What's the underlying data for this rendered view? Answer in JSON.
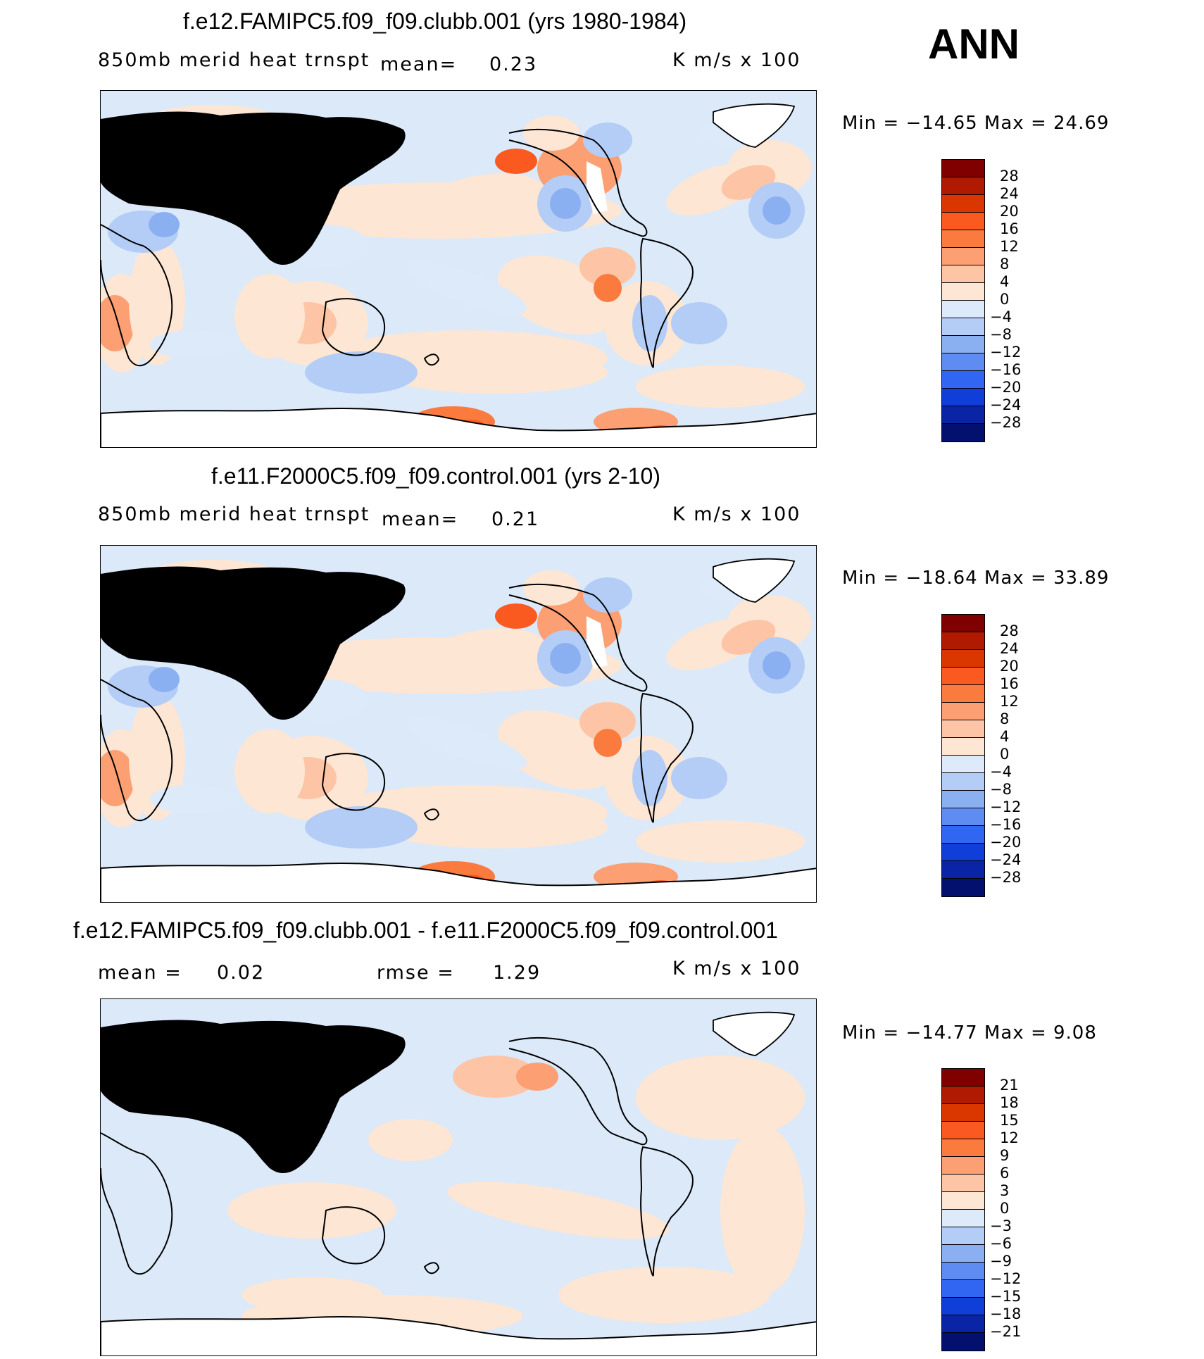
{
  "season": "ANN",
  "units": "K m/s x 100",
  "panels": [
    {
      "id": "model",
      "title": "f.e12.FAMIPC5.f09_f09.clubb.001 (yrs 1980-1984)",
      "variable": "850mb merid heat trnspt",
      "mean_label": "mean=",
      "mean_value": "0.23",
      "min_max": "Min = −14.65 Max =   24.69",
      "colorbar_ticks": [
        "28",
        "24",
        "20",
        "16",
        "12",
        "8",
        "4",
        "0",
        "−4",
        "−8",
        "−12",
        "−16",
        "−20",
        "−24",
        "−28"
      ]
    },
    {
      "id": "control",
      "title": "f.e11.F2000C5.f09_f09.control.001 (yrs 2-10)",
      "variable": "850mb merid heat trnspt",
      "mean_label": "mean=",
      "mean_value": "0.21",
      "min_max": "Min = −18.64 Max =   33.89",
      "colorbar_ticks": [
        "28",
        "24",
        "20",
        "16",
        "12",
        "8",
        "4",
        "0",
        "−4",
        "−8",
        "−12",
        "−16",
        "−20",
        "−24",
        "−28"
      ]
    },
    {
      "id": "difference",
      "title": "f.e12.FAMIPC5.f09_f09.clubb.001 - f.e11.F2000C5.f09_f09.control.001",
      "mean_label": "mean =",
      "mean_value": "0.02",
      "rmse_label": "rmse =",
      "rmse_value": "1.29",
      "min_max": "Min = −14.77 Max =    9.08",
      "colorbar_ticks": [
        "21",
        "18",
        "15",
        "12",
        "9",
        "6",
        "3",
        "0",
        "−3",
        "−6",
        "−9",
        "−12",
        "−15",
        "−18",
        "−21"
      ]
    }
  ],
  "colors": {
    "colorbar": [
      "#800000",
      "#b01a00",
      "#d93600",
      "#fa5a1f",
      "#fb7a3e",
      "#fc9f72",
      "#fdc5a6",
      "#fde6d4",
      "#dceafa",
      "#b3cdf6",
      "#8bb0f2",
      "#5f8cf0",
      "#3066f2",
      "#0f3ed8",
      "#0a24a6",
      "#04106e"
    ],
    "land_blank": "#ffffff",
    "coast": "#000000"
  }
}
